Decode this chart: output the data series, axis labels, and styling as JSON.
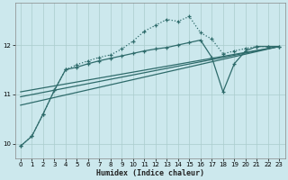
{
  "background_color": "#cce8ed",
  "grid_color": "#aacccc",
  "line_color": "#2e6b6b",
  "xlabel": "Humidex (Indice chaleur)",
  "xlim": [
    -0.5,
    23.5
  ],
  "ylim": [
    9.7,
    12.85
  ],
  "yticks": [
    10,
    11,
    12
  ],
  "xticks": [
    0,
    1,
    2,
    3,
    4,
    5,
    6,
    7,
    8,
    9,
    10,
    11,
    12,
    13,
    14,
    15,
    16,
    17,
    18,
    19,
    20,
    21,
    22,
    23
  ],
  "dotted_x": [
    0,
    1,
    2,
    3,
    4,
    5,
    6,
    7,
    8,
    9,
    10,
    11,
    12,
    13,
    14,
    15,
    16,
    17,
    18,
    19,
    20,
    21,
    22,
    23
  ],
  "dotted_y": [
    9.95,
    10.15,
    10.6,
    11.08,
    11.5,
    11.6,
    11.68,
    11.75,
    11.8,
    11.92,
    12.08,
    12.28,
    12.4,
    12.52,
    12.48,
    12.58,
    12.25,
    12.12,
    11.82,
    11.88,
    11.93,
    11.97,
    11.97,
    11.97
  ],
  "curve_x": [
    0,
    1,
    2,
    3,
    4,
    5,
    6,
    7,
    8,
    9,
    10,
    11,
    12,
    13,
    14,
    15,
    16,
    17,
    18,
    19,
    20,
    21,
    22,
    23
  ],
  "curve_y": [
    9.95,
    10.15,
    10.6,
    11.08,
    11.5,
    11.55,
    11.62,
    11.68,
    11.73,
    11.78,
    11.83,
    11.88,
    11.92,
    11.95,
    12.0,
    12.05,
    12.1,
    11.75,
    11.05,
    11.62,
    11.88,
    11.97,
    11.97,
    11.97
  ],
  "trend1_x": [
    0,
    23
  ],
  "trend1_y": [
    10.78,
    11.97
  ],
  "trend2_x": [
    0,
    23
  ],
  "trend2_y": [
    10.95,
    11.97
  ],
  "trend3_x": [
    0,
    23
  ],
  "trend3_y": [
    11.05,
    11.97
  ]
}
